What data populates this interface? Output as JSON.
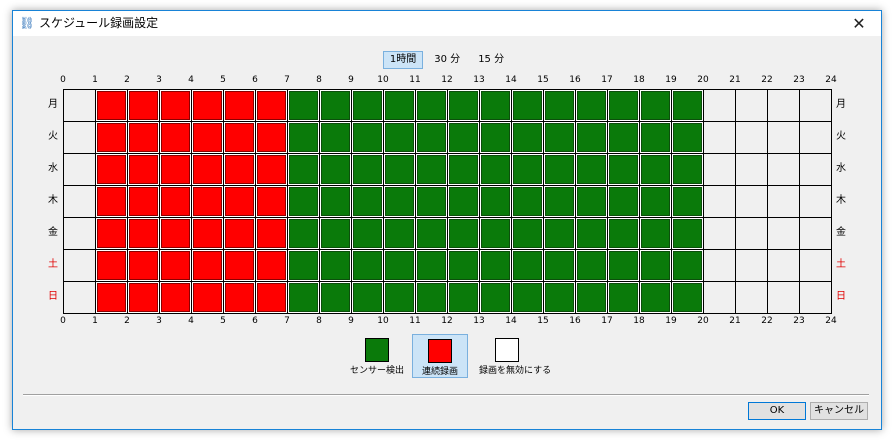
{
  "window": {
    "title": "スケジュール録画設定",
    "close_glyph": "✕",
    "icon_glyph": "⛓"
  },
  "resolution_tabs": [
    {
      "label": "1時間",
      "active": true
    },
    {
      "label": "30 分",
      "active": false
    },
    {
      "label": "15 分",
      "active": false
    }
  ],
  "hours": [
    "0",
    "1",
    "2",
    "3",
    "4",
    "5",
    "6",
    "7",
    "8",
    "9",
    "10",
    "11",
    "12",
    "13",
    "14",
    "15",
    "16",
    "17",
    "18",
    "19",
    "20",
    "21",
    "22",
    "23",
    "24"
  ],
  "days": [
    {
      "label": "月",
      "weekend": false
    },
    {
      "label": "火",
      "weekend": false
    },
    {
      "label": "水",
      "weekend": false
    },
    {
      "label": "木",
      "weekend": false
    },
    {
      "label": "金",
      "weekend": false
    },
    {
      "label": "土",
      "weekend": true
    },
    {
      "label": "日",
      "weekend": true
    }
  ],
  "schedule": {
    "legend_codes": {
      "none": "無効",
      "sensor": "センサー検出",
      "continuous": "連続録画"
    },
    "rows": [
      [
        "none",
        "continuous",
        "continuous",
        "continuous",
        "continuous",
        "continuous",
        "continuous",
        "sensor",
        "sensor",
        "sensor",
        "sensor",
        "sensor",
        "sensor",
        "sensor",
        "sensor",
        "sensor",
        "sensor",
        "sensor",
        "sensor",
        "sensor",
        "none",
        "none",
        "none",
        "none"
      ],
      [
        "none",
        "continuous",
        "continuous",
        "continuous",
        "continuous",
        "continuous",
        "continuous",
        "sensor",
        "sensor",
        "sensor",
        "sensor",
        "sensor",
        "sensor",
        "sensor",
        "sensor",
        "sensor",
        "sensor",
        "sensor",
        "sensor",
        "sensor",
        "none",
        "none",
        "none",
        "none"
      ],
      [
        "none",
        "continuous",
        "continuous",
        "continuous",
        "continuous",
        "continuous",
        "continuous",
        "sensor",
        "sensor",
        "sensor",
        "sensor",
        "sensor",
        "sensor",
        "sensor",
        "sensor",
        "sensor",
        "sensor",
        "sensor",
        "sensor",
        "sensor",
        "none",
        "none",
        "none",
        "none"
      ],
      [
        "none",
        "continuous",
        "continuous",
        "continuous",
        "continuous",
        "continuous",
        "continuous",
        "sensor",
        "sensor",
        "sensor",
        "sensor",
        "sensor",
        "sensor",
        "sensor",
        "sensor",
        "sensor",
        "sensor",
        "sensor",
        "sensor",
        "sensor",
        "none",
        "none",
        "none",
        "none"
      ],
      [
        "none",
        "continuous",
        "continuous",
        "continuous",
        "continuous",
        "continuous",
        "continuous",
        "sensor",
        "sensor",
        "sensor",
        "sensor",
        "sensor",
        "sensor",
        "sensor",
        "sensor",
        "sensor",
        "sensor",
        "sensor",
        "sensor",
        "sensor",
        "none",
        "none",
        "none",
        "none"
      ],
      [
        "none",
        "continuous",
        "continuous",
        "continuous",
        "continuous",
        "continuous",
        "continuous",
        "sensor",
        "sensor",
        "sensor",
        "sensor",
        "sensor",
        "sensor",
        "sensor",
        "sensor",
        "sensor",
        "sensor",
        "sensor",
        "sensor",
        "sensor",
        "none",
        "none",
        "none",
        "none"
      ],
      [
        "none",
        "continuous",
        "continuous",
        "continuous",
        "continuous",
        "continuous",
        "continuous",
        "sensor",
        "sensor",
        "sensor",
        "sensor",
        "sensor",
        "sensor",
        "sensor",
        "sensor",
        "sensor",
        "sensor",
        "sensor",
        "sensor",
        "sensor",
        "none",
        "none",
        "none",
        "none"
      ]
    ]
  },
  "legend": [
    {
      "key": "sensor",
      "label": "センサー検出",
      "color": "#0a7a0a",
      "selected": false
    },
    {
      "key": "continuous",
      "label": "連続録画",
      "color": "#ff0000",
      "selected": true
    },
    {
      "key": "none",
      "label": "録画を無効にする",
      "color": "#ffffff",
      "selected": false
    }
  ],
  "buttons": {
    "ok_label": "OK",
    "cancel_label": "キャンセル"
  },
  "colors": {
    "accent": "#0078d7",
    "weekend_text": "#e00000"
  }
}
